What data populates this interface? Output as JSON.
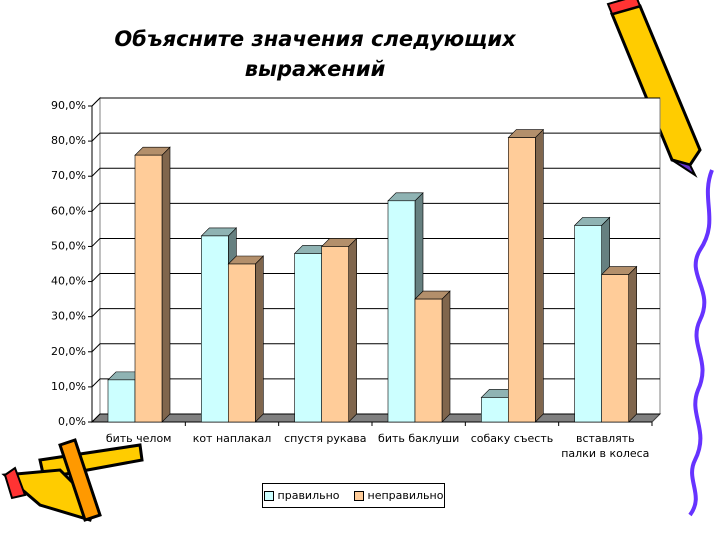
{
  "chart_data": {
    "type": "bar3d",
    "title": "Объясните значения следующих выражений",
    "categories": [
      "бить челом",
      "кот наплакал",
      "спустя рукава",
      "бить баклуши",
      "собаку съесть",
      "вставлять палки в колеса"
    ],
    "series": [
      {
        "name": "правильно",
        "color": "#ccffff",
        "values": [
          12,
          53,
          48,
          63,
          7,
          56
        ]
      },
      {
        "name": "неправильно",
        "color": "#ffcc99",
        "values": [
          76,
          45,
          50,
          35,
          81,
          42
        ]
      }
    ],
    "ylim": [
      0,
      90
    ],
    "yticks": [
      {
        "value": 0,
        "label": "0,0%"
      },
      {
        "value": 10,
        "label": "10,0%"
      },
      {
        "value": 20,
        "label": "20,0%"
      },
      {
        "value": 30,
        "label": "30,0%"
      },
      {
        "value": 40,
        "label": "40,0%"
      },
      {
        "value": 50,
        "label": "50,0%"
      },
      {
        "value": 60,
        "label": "60,0%"
      },
      {
        "value": 70,
        "label": "70,0%"
      },
      {
        "value": 80,
        "label": "80,0%"
      },
      {
        "value": 90,
        "label": "90,0%"
      }
    ],
    "grid": true,
    "legend": "bottom"
  }
}
